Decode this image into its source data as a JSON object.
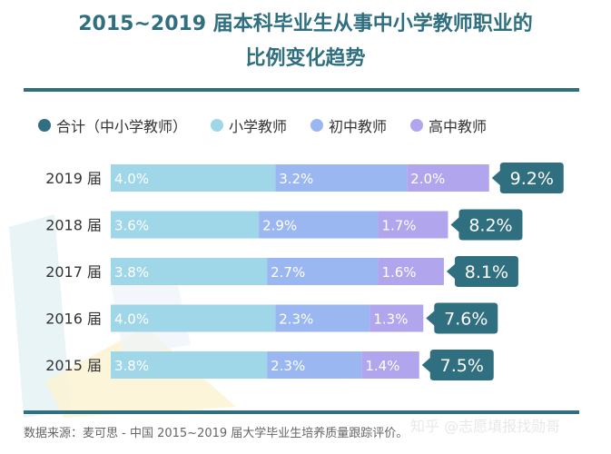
{
  "title_lines": [
    "2015~2019 届本科毕业生从事中小学教师职业的",
    "比例变化趋势"
  ],
  "source": "数据来源：麦可思 - 中国 2015~2019 届大学毕业生培养质量跟踪评价。",
  "watermark": "知乎 @志愿填报找勋哥",
  "colors": {
    "title": "#2f6f80",
    "total": "#2f6f80",
    "primary": "#9fd6e8",
    "junior": "#9bb7f2",
    "senior": "#b1a6ee"
  },
  "chart_data": {
    "type": "bar",
    "stacked": true,
    "orientation": "horizontal",
    "categories": [
      "2019 届",
      "2018 届",
      "2017 届",
      "2016 届",
      "2015 届"
    ],
    "series": [
      {
        "name": "小学教师",
        "values": [
          4.0,
          3.6,
          3.8,
          4.0,
          3.8
        ]
      },
      {
        "name": "初中教师",
        "values": [
          3.2,
          2.9,
          2.7,
          2.3,
          2.3
        ]
      },
      {
        "name": "高中教师",
        "values": [
          2.0,
          1.7,
          1.6,
          1.3,
          1.4
        ]
      }
    ],
    "totals": {
      "name": "合计（中小学教师）",
      "values": [
        9.2,
        8.2,
        8.1,
        7.6,
        7.5
      ]
    },
    "value_labels": {
      "小学教师": [
        "4.0%",
        "3.6%",
        "3.8%",
        "4.0%",
        "3.8%"
      ],
      "初中教师": [
        "3.2%",
        "2.9%",
        "2.7%",
        "2.3%",
        "2.3%"
      ],
      "高中教师": [
        "2.0%",
        "1.7%",
        "1.6%",
        "1.3%",
        "1.4%"
      ],
      "合计（中小学教师）": [
        "9.2%",
        "8.2%",
        "8.1%",
        "7.6%",
        "7.5%"
      ]
    },
    "legend": [
      "合计（中小学教师）",
      "小学教师",
      "初中教师",
      "高中教师"
    ],
    "legend_position": "top",
    "grid": false
  }
}
